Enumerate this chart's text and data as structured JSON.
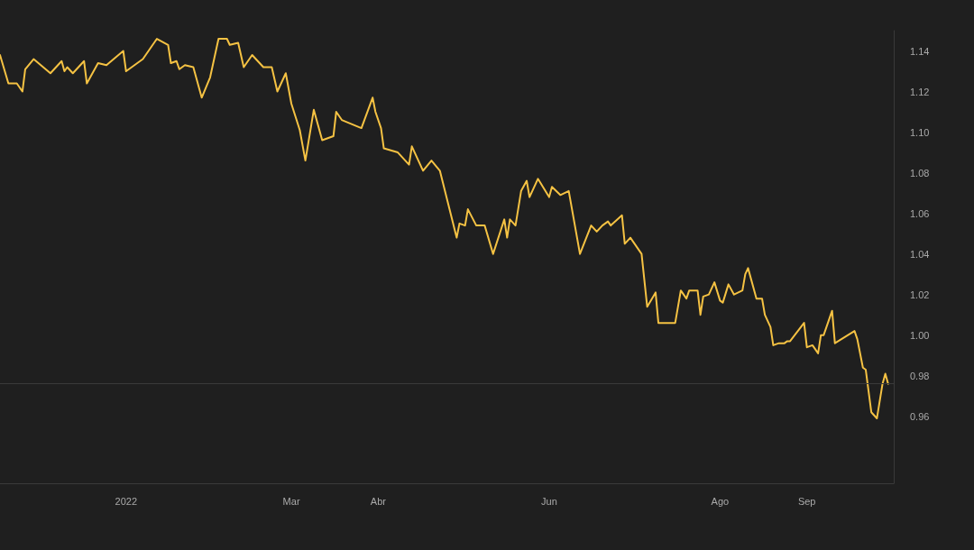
{
  "chart_data": {
    "type": "line",
    "x": [
      "2021-11-17",
      "2021-11-20",
      "2021-11-23",
      "2021-11-25",
      "2021-11-26",
      "2021-11-29",
      "2021-12-05",
      "2021-12-09",
      "2021-12-10",
      "2021-12-11",
      "2021-12-13",
      "2021-12-17",
      "2021-12-18",
      "2021-12-22",
      "2021-12-25",
      "2021-12-31",
      "2022-01-01",
      "2022-01-07",
      "2022-01-12",
      "2022-01-16",
      "2022-01-17",
      "2022-01-19",
      "2022-01-20",
      "2022-01-22",
      "2022-01-25",
      "2022-01-28",
      "2022-01-31",
      "2022-02-03",
      "2022-02-06",
      "2022-02-07",
      "2022-02-10",
      "2022-02-12",
      "2022-02-15",
      "2022-02-19",
      "2022-02-22",
      "2022-02-24",
      "2022-02-27",
      "2022-03-01",
      "2022-03-04",
      "2022-03-06",
      "2022-03-09",
      "2022-03-12",
      "2022-03-16",
      "2022-03-17",
      "2022-03-19",
      "2022-03-26",
      "2022-03-30",
      "2022-03-31",
      "2022-04-02",
      "2022-04-03",
      "2022-04-08",
      "2022-04-12",
      "2022-04-13",
      "2022-04-17",
      "2022-04-20",
      "2022-04-23",
      "2022-04-29",
      "2022-04-30",
      "2022-05-02",
      "2022-05-03",
      "2022-05-06",
      "2022-05-09",
      "2022-05-12",
      "2022-05-16",
      "2022-05-17",
      "2022-05-18",
      "2022-05-20",
      "2022-05-22",
      "2022-05-24",
      "2022-05-25",
      "2022-05-28",
      "2022-06-01",
      "2022-06-02",
      "2022-06-05",
      "2022-06-08",
      "2022-06-12",
      "2022-06-16",
      "2022-06-18",
      "2022-06-20",
      "2022-06-22",
      "2022-06-23",
      "2022-06-27",
      "2022-06-28",
      "2022-06-30",
      "2022-07-04",
      "2022-07-06",
      "2022-07-09",
      "2022-07-10",
      "2022-07-16",
      "2022-07-18",
      "2022-07-20",
      "2022-07-21",
      "2022-07-24",
      "2022-07-25",
      "2022-07-26",
      "2022-07-28",
      "2022-07-30",
      "2022-08-01",
      "2022-08-02",
      "2022-08-04",
      "2022-08-06",
      "2022-08-09",
      "2022-08-10",
      "2022-08-11",
      "2022-08-14",
      "2022-08-16",
      "2022-08-17",
      "2022-08-19",
      "2022-08-20",
      "2022-08-22",
      "2022-08-24",
      "2022-08-25",
      "2022-08-26",
      "2022-08-31",
      "2022-09-01",
      "2022-09-03",
      "2022-09-05",
      "2022-09-06",
      "2022-09-07",
      "2022-09-10",
      "2022-09-11",
      "2022-09-18",
      "2022-09-19",
      "2022-09-21",
      "2022-09-22",
      "2022-09-24",
      "2022-09-26",
      "2022-09-28",
      "2022-09-29",
      "2022-09-30"
    ],
    "series": [
      {
        "color": "#f5c243",
        "values": [
          1.138,
          1.124,
          1.124,
          1.12,
          1.131,
          1.136,
          1.129,
          1.135,
          1.13,
          1.132,
          1.129,
          1.135,
          1.124,
          1.134,
          1.133,
          1.14,
          1.13,
          1.136,
          1.146,
          1.143,
          1.134,
          1.135,
          1.131,
          1.133,
          1.132,
          1.117,
          1.127,
          1.146,
          1.146,
          1.143,
          1.144,
          1.132,
          1.138,
          1.132,
          1.132,
          1.12,
          1.129,
          1.114,
          1.101,
          1.086,
          1.111,
          1.096,
          1.098,
          1.11,
          1.106,
          1.102,
          1.117,
          1.11,
          1.102,
          1.092,
          1.09,
          1.084,
          1.093,
          1.081,
          1.086,
          1.081,
          1.048,
          1.055,
          1.054,
          1.062,
          1.054,
          1.054,
          1.04,
          1.057,
          1.048,
          1.057,
          1.054,
          1.071,
          1.076,
          1.068,
          1.077,
          1.068,
          1.073,
          1.069,
          1.071,
          1.04,
          1.054,
          1.051,
          1.054,
          1.056,
          1.054,
          1.059,
          1.045,
          1.048,
          1.04,
          1.014,
          1.021,
          1.006,
          1.006,
          1.022,
          1.018,
          1.022,
          1.022,
          1.01,
          1.019,
          1.02,
          1.026,
          1.017,
          1.016,
          1.025,
          1.02,
          1.022,
          1.03,
          1.033,
          1.018,
          1.018,
          1.01,
          1.004,
          0.995,
          0.996,
          0.996,
          0.997,
          0.997,
          1.006,
          0.994,
          0.995,
          0.991,
          1.0,
          1.0,
          1.012,
          0.996,
          1.002,
          0.998,
          0.984,
          0.983,
          0.962,
          0.959,
          0.976,
          0.981,
          0.976
        ]
      }
    ],
    "xlim": [
      "2021-11-17",
      "2022-10-02"
    ],
    "xticks": [
      {
        "value": "2022-01-01",
        "label": "2022"
      },
      {
        "value": "2022-03-01",
        "label": "Mar"
      },
      {
        "value": "2022-04-01",
        "label": "Abr"
      },
      {
        "value": "2022-06-01",
        "label": "Jun"
      },
      {
        "value": "2022-08-01",
        "label": "Ago"
      },
      {
        "value": "2022-09-01",
        "label": "Sep"
      }
    ],
    "ylim": [
      0.927,
      1.15
    ],
    "yticks": [
      0.96,
      0.98,
      {
        "value": 1,
        "label": "1.00"
      },
      1.02,
      1.04,
      1.06,
      1.08,
      {
        "value": 1.1,
        "label": "1.10"
      },
      1.12,
      1.14
    ],
    "ref_lines": [
      {
        "axis": "y",
        "value": 0.976,
        "color": "#3a3a3a"
      }
    ],
    "marker": "none",
    "line_style": "solid"
  }
}
